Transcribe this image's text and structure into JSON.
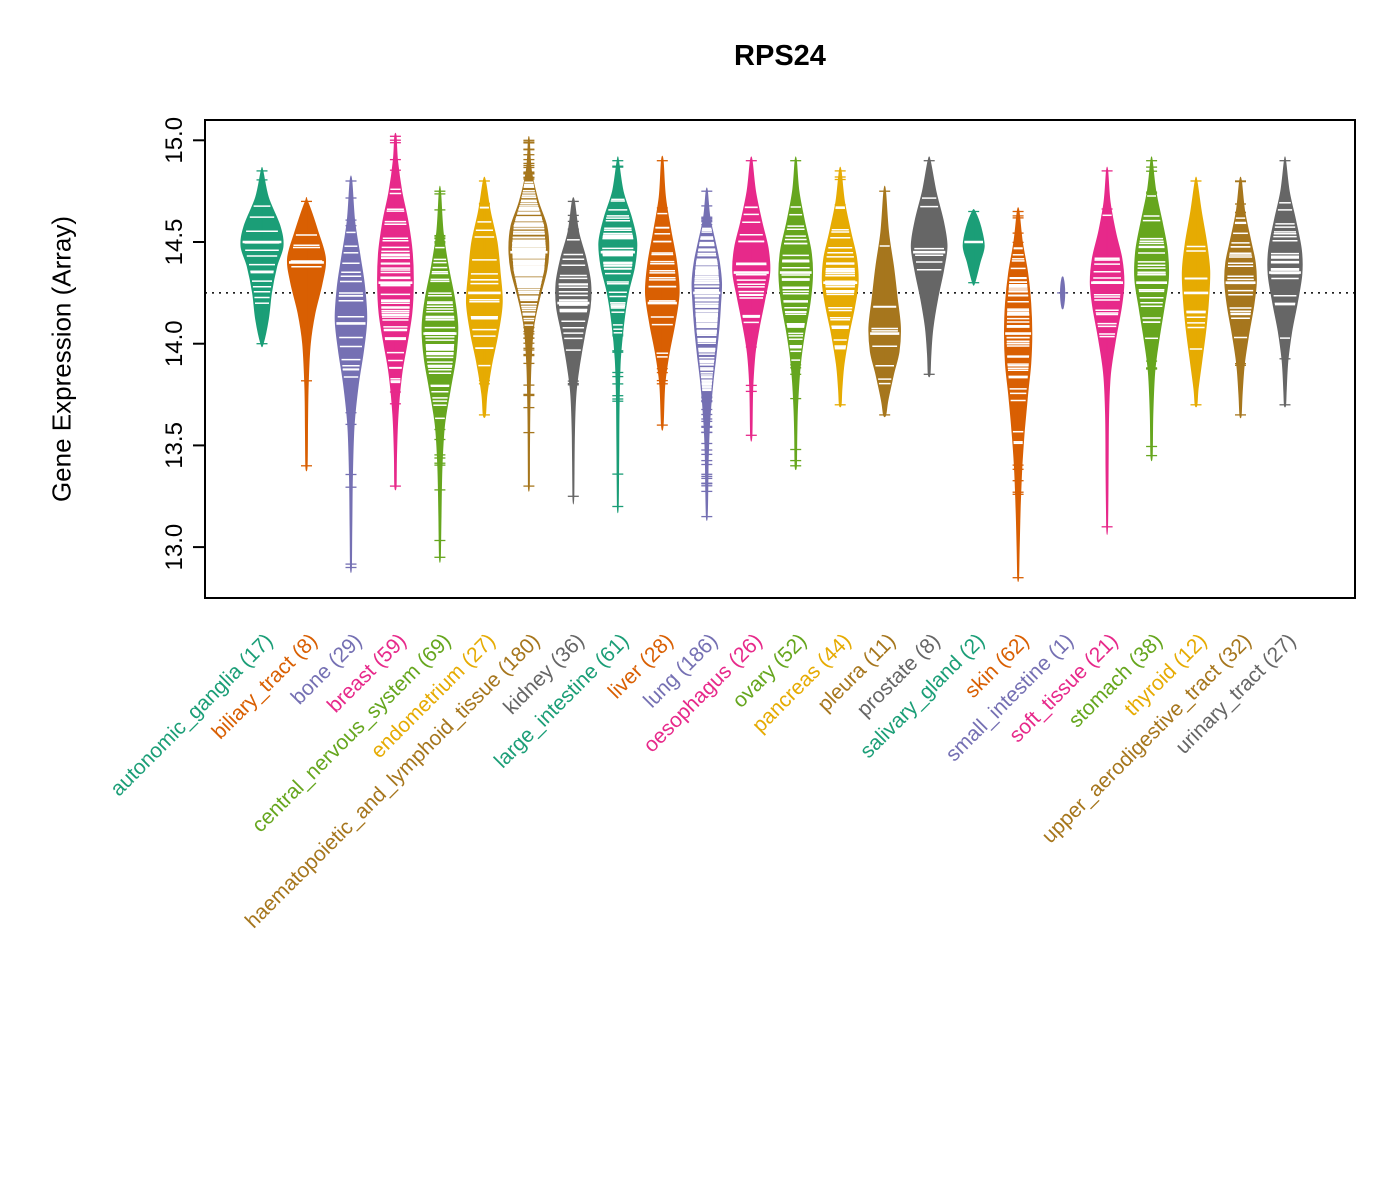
{
  "chart_data": {
    "type": "violin",
    "title": "RPS24",
    "ylabel": "Gene Expression (Array)",
    "xlabel": "",
    "ylim": [
      12.75,
      15.1
    ],
    "yticks": [
      13.0,
      13.5,
      14.0,
      14.5,
      15.0
    ],
    "reference_line": 14.25,
    "grid": false,
    "legend": "none",
    "palette": [
      "#1B9E77",
      "#D95F02",
      "#7570B3",
      "#E7298A",
      "#66A61E",
      "#E6AB02",
      "#A6761D",
      "#666666"
    ],
    "groups": [
      {
        "label": "autonomic_ganglia",
        "n": 17,
        "color": "#1B9E77",
        "median": 14.5,
        "min": 14.0,
        "max": 14.85,
        "profile": [
          [
            14.85,
            0.04
          ],
          [
            14.72,
            0.3
          ],
          [
            14.58,
            0.85
          ],
          [
            14.48,
            1.0
          ],
          [
            14.38,
            0.7
          ],
          [
            14.25,
            0.45
          ],
          [
            14.12,
            0.3
          ],
          [
            14.0,
            0.05
          ]
        ]
      },
      {
        "label": "biliary_tract",
        "n": 8,
        "color": "#D95F02",
        "median": 14.4,
        "min": 13.4,
        "max": 14.7,
        "profile": [
          [
            14.7,
            0.05
          ],
          [
            14.55,
            0.55
          ],
          [
            14.42,
            0.9
          ],
          [
            14.3,
            0.75
          ],
          [
            14.15,
            0.4
          ],
          [
            14.0,
            0.18
          ],
          [
            13.8,
            0.08
          ],
          [
            13.6,
            0.05
          ],
          [
            13.4,
            0.03
          ]
        ]
      },
      {
        "label": "bone",
        "n": 29,
        "color": "#7570B3",
        "median": 14.1,
        "min": 12.9,
        "max": 14.8,
        "profile": [
          [
            14.8,
            0.04
          ],
          [
            14.6,
            0.18
          ],
          [
            14.42,
            0.45
          ],
          [
            14.28,
            0.65
          ],
          [
            14.12,
            0.75
          ],
          [
            13.97,
            0.6
          ],
          [
            13.8,
            0.35
          ],
          [
            13.6,
            0.15
          ],
          [
            13.35,
            0.07
          ],
          [
            13.1,
            0.04
          ],
          [
            12.9,
            0.02
          ]
        ]
      },
      {
        "label": "breast",
        "n": 59,
        "color": "#E7298A",
        "median": 14.3,
        "min": 13.3,
        "max": 15.02,
        "profile": [
          [
            15.02,
            0.03
          ],
          [
            14.9,
            0.1
          ],
          [
            14.75,
            0.3
          ],
          [
            14.6,
            0.6
          ],
          [
            14.45,
            0.8
          ],
          [
            14.3,
            0.85
          ],
          [
            14.15,
            0.78
          ],
          [
            14.0,
            0.55
          ],
          [
            13.85,
            0.3
          ],
          [
            13.65,
            0.12
          ],
          [
            13.45,
            0.05
          ],
          [
            13.3,
            0.03
          ]
        ]
      },
      {
        "label": "central_nervous_system",
        "n": 69,
        "color": "#66A61E",
        "median": 14.05,
        "min": 12.95,
        "max": 14.75,
        "profile": [
          [
            14.75,
            0.03
          ],
          [
            14.55,
            0.15
          ],
          [
            14.38,
            0.4
          ],
          [
            14.22,
            0.7
          ],
          [
            14.08,
            0.85
          ],
          [
            13.93,
            0.75
          ],
          [
            13.78,
            0.5
          ],
          [
            13.6,
            0.22
          ],
          [
            13.4,
            0.1
          ],
          [
            13.15,
            0.05
          ],
          [
            12.95,
            0.02
          ]
        ]
      },
      {
        "label": "endometrium",
        "n": 27,
        "color": "#E6AB02",
        "median": 14.25,
        "min": 13.65,
        "max": 14.8,
        "profile": [
          [
            14.8,
            0.05
          ],
          [
            14.65,
            0.28
          ],
          [
            14.5,
            0.6
          ],
          [
            14.35,
            0.75
          ],
          [
            14.2,
            0.85
          ],
          [
            14.05,
            0.65
          ],
          [
            13.9,
            0.35
          ],
          [
            13.75,
            0.12
          ],
          [
            13.65,
            0.05
          ]
        ]
      },
      {
        "label": "haematopoietic_and_lymphoid_tissue",
        "n": 180,
        "color": "#A6761D",
        "median": 14.45,
        "min": 13.3,
        "max": 15.0,
        "profile": [
          [
            15.0,
            0.02
          ],
          [
            14.85,
            0.12
          ],
          [
            14.7,
            0.45
          ],
          [
            14.58,
            0.85
          ],
          [
            14.47,
            0.95
          ],
          [
            14.36,
            0.85
          ],
          [
            14.22,
            0.5
          ],
          [
            14.08,
            0.22
          ],
          [
            13.9,
            0.1
          ],
          [
            13.7,
            0.05
          ],
          [
            13.5,
            0.03
          ],
          [
            13.3,
            0.02
          ]
        ]
      },
      {
        "label": "kidney",
        "n": 36,
        "color": "#666666",
        "median": 14.2,
        "min": 13.25,
        "max": 14.7,
        "profile": [
          [
            14.7,
            0.05
          ],
          [
            14.55,
            0.25
          ],
          [
            14.42,
            0.6
          ],
          [
            14.3,
            0.82
          ],
          [
            14.18,
            0.8
          ],
          [
            14.05,
            0.55
          ],
          [
            13.9,
            0.3
          ],
          [
            13.75,
            0.12
          ],
          [
            13.55,
            0.05
          ],
          [
            13.25,
            0.02
          ]
        ]
      },
      {
        "label": "large_intestine",
        "n": 61,
        "color": "#1B9E77",
        "median": 14.45,
        "min": 13.2,
        "max": 14.9,
        "profile": [
          [
            14.9,
            0.03
          ],
          [
            14.75,
            0.25
          ],
          [
            14.62,
            0.65
          ],
          [
            14.5,
            0.9
          ],
          [
            14.38,
            0.8
          ],
          [
            14.25,
            0.5
          ],
          [
            14.1,
            0.28
          ],
          [
            13.92,
            0.12
          ],
          [
            13.7,
            0.06
          ],
          [
            13.45,
            0.04
          ],
          [
            13.2,
            0.02
          ]
        ]
      },
      {
        "label": "liver",
        "n": 28,
        "color": "#D95F02",
        "median": 14.2,
        "min": 13.6,
        "max": 14.9,
        "profile": [
          [
            14.9,
            0.04
          ],
          [
            14.72,
            0.15
          ],
          [
            14.55,
            0.42
          ],
          [
            14.4,
            0.68
          ],
          [
            14.25,
            0.8
          ],
          [
            14.1,
            0.6
          ],
          [
            13.95,
            0.32
          ],
          [
            13.8,
            0.12
          ],
          [
            13.6,
            0.04
          ]
        ]
      },
      {
        "label": "lung",
        "n": 186,
        "color": "#7570B3",
        "median": 14.25,
        "min": 13.15,
        "max": 14.75,
        "profile": [
          [
            14.75,
            0.03
          ],
          [
            14.62,
            0.15
          ],
          [
            14.5,
            0.4
          ],
          [
            14.4,
            0.6
          ],
          [
            14.3,
            0.7
          ],
          [
            14.2,
            0.66
          ],
          [
            14.08,
            0.58
          ],
          [
            13.95,
            0.45
          ],
          [
            13.8,
            0.28
          ],
          [
            13.62,
            0.14
          ],
          [
            13.45,
            0.07
          ],
          [
            13.3,
            0.05
          ],
          [
            13.15,
            0.02
          ]
        ]
      },
      {
        "label": "oesophagus",
        "n": 26,
        "color": "#E7298A",
        "median": 14.35,
        "min": 13.55,
        "max": 14.9,
        "profile": [
          [
            14.9,
            0.04
          ],
          [
            14.75,
            0.2
          ],
          [
            14.6,
            0.5
          ],
          [
            14.47,
            0.8
          ],
          [
            14.35,
            0.88
          ],
          [
            14.22,
            0.65
          ],
          [
            14.08,
            0.38
          ],
          [
            13.95,
            0.18
          ],
          [
            13.78,
            0.07
          ],
          [
            13.55,
            0.03
          ]
        ]
      },
      {
        "label": "ovary",
        "n": 52,
        "color": "#66A61E",
        "median": 14.35,
        "min": 13.4,
        "max": 14.9,
        "profile": [
          [
            14.9,
            0.03
          ],
          [
            14.75,
            0.15
          ],
          [
            14.6,
            0.42
          ],
          [
            14.46,
            0.72
          ],
          [
            14.34,
            0.8
          ],
          [
            14.2,
            0.68
          ],
          [
            14.05,
            0.42
          ],
          [
            13.9,
            0.22
          ],
          [
            13.7,
            0.09
          ],
          [
            13.55,
            0.05
          ],
          [
            13.4,
            0.03
          ]
        ]
      },
      {
        "label": "pancreas",
        "n": 44,
        "color": "#E6AB02",
        "median": 14.3,
        "min": 13.7,
        "max": 14.85,
        "profile": [
          [
            14.85,
            0.04
          ],
          [
            14.7,
            0.2
          ],
          [
            14.55,
            0.5
          ],
          [
            14.42,
            0.78
          ],
          [
            14.3,
            0.85
          ],
          [
            14.18,
            0.68
          ],
          [
            14.05,
            0.42
          ],
          [
            13.9,
            0.18
          ],
          [
            13.78,
            0.08
          ],
          [
            13.7,
            0.04
          ]
        ]
      },
      {
        "label": "pleura",
        "n": 11,
        "color": "#A6761D",
        "median": 14.05,
        "min": 13.65,
        "max": 14.75,
        "profile": [
          [
            14.75,
            0.04
          ],
          [
            14.55,
            0.18
          ],
          [
            14.38,
            0.42
          ],
          [
            14.22,
            0.6
          ],
          [
            14.08,
            0.75
          ],
          [
            13.96,
            0.68
          ],
          [
            13.85,
            0.42
          ],
          [
            13.72,
            0.15
          ],
          [
            13.65,
            0.05
          ]
        ]
      },
      {
        "label": "prostate",
        "n": 8,
        "color": "#666666",
        "median": 14.45,
        "min": 13.85,
        "max": 14.9,
        "profile": [
          [
            14.9,
            0.05
          ],
          [
            14.75,
            0.32
          ],
          [
            14.6,
            0.68
          ],
          [
            14.48,
            0.85
          ],
          [
            14.36,
            0.68
          ],
          [
            14.22,
            0.4
          ],
          [
            14.08,
            0.18
          ],
          [
            13.95,
            0.08
          ],
          [
            13.85,
            0.04
          ]
        ]
      },
      {
        "label": "salivary_gland",
        "n": 2,
        "color": "#1B9E77",
        "median": 14.5,
        "min": 14.3,
        "max": 14.65,
        "profile": [
          [
            14.65,
            0.06
          ],
          [
            14.57,
            0.35
          ],
          [
            14.48,
            0.5
          ],
          [
            14.4,
            0.3
          ],
          [
            14.3,
            0.05
          ]
        ]
      },
      {
        "label": "skin",
        "n": 62,
        "color": "#D95F02",
        "median": 14.05,
        "min": 12.85,
        "max": 14.65,
        "profile": [
          [
            14.65,
            0.04
          ],
          [
            14.5,
            0.2
          ],
          [
            14.35,
            0.45
          ],
          [
            14.2,
            0.6
          ],
          [
            14.05,
            0.65
          ],
          [
            13.9,
            0.6
          ],
          [
            13.75,
            0.45
          ],
          [
            13.58,
            0.3
          ],
          [
            13.4,
            0.18
          ],
          [
            13.2,
            0.1
          ],
          [
            13.0,
            0.05
          ],
          [
            12.85,
            0.02
          ]
        ]
      },
      {
        "label": "small_intestine",
        "n": 1,
        "color": "#7570B3",
        "median": 14.25,
        "min": 14.18,
        "max": 14.32,
        "profile": [
          [
            14.32,
            0.04
          ],
          [
            14.25,
            0.1
          ],
          [
            14.18,
            0.04
          ]
        ]
      },
      {
        "label": "soft_tissue",
        "n": 21,
        "color": "#E7298A",
        "median": 14.3,
        "min": 13.1,
        "max": 14.85,
        "profile": [
          [
            14.85,
            0.03
          ],
          [
            14.7,
            0.14
          ],
          [
            14.55,
            0.4
          ],
          [
            14.42,
            0.7
          ],
          [
            14.3,
            0.8
          ],
          [
            14.18,
            0.68
          ],
          [
            14.02,
            0.4
          ],
          [
            13.85,
            0.16
          ],
          [
            13.65,
            0.07
          ],
          [
            13.4,
            0.05
          ],
          [
            13.1,
            0.02
          ]
        ]
      },
      {
        "label": "stomach",
        "n": 38,
        "color": "#66A61E",
        "median": 14.3,
        "min": 13.45,
        "max": 14.9,
        "profile": [
          [
            14.9,
            0.03
          ],
          [
            14.75,
            0.2
          ],
          [
            14.6,
            0.5
          ],
          [
            14.46,
            0.75
          ],
          [
            14.32,
            0.8
          ],
          [
            14.18,
            0.6
          ],
          [
            14.02,
            0.35
          ],
          [
            13.86,
            0.15
          ],
          [
            13.65,
            0.06
          ],
          [
            13.45,
            0.03
          ]
        ]
      },
      {
        "label": "thyroid",
        "n": 12,
        "color": "#E6AB02",
        "median": 14.25,
        "min": 13.7,
        "max": 14.8,
        "profile": [
          [
            14.8,
            0.04
          ],
          [
            14.65,
            0.25
          ],
          [
            14.5,
            0.5
          ],
          [
            14.36,
            0.65
          ],
          [
            14.22,
            0.6
          ],
          [
            14.08,
            0.48
          ],
          [
            13.92,
            0.28
          ],
          [
            13.78,
            0.1
          ],
          [
            13.7,
            0.04
          ]
        ]
      },
      {
        "label": "upper_aerodigestive_tract",
        "n": 32,
        "color": "#A6761D",
        "median": 14.3,
        "min": 13.65,
        "max": 14.8,
        "profile": [
          [
            14.8,
            0.04
          ],
          [
            14.65,
            0.2
          ],
          [
            14.5,
            0.5
          ],
          [
            14.4,
            0.7
          ],
          [
            14.3,
            0.75
          ],
          [
            14.18,
            0.62
          ],
          [
            14.04,
            0.38
          ],
          [
            13.9,
            0.18
          ],
          [
            13.76,
            0.08
          ],
          [
            13.65,
            0.03
          ]
        ]
      },
      {
        "label": "urinary_tract",
        "n": 27,
        "color": "#666666",
        "median": 14.35,
        "min": 13.7,
        "max": 14.9,
        "profile": [
          [
            14.9,
            0.03
          ],
          [
            14.75,
            0.2
          ],
          [
            14.6,
            0.52
          ],
          [
            14.46,
            0.78
          ],
          [
            14.34,
            0.8
          ],
          [
            14.2,
            0.58
          ],
          [
            14.06,
            0.32
          ],
          [
            13.92,
            0.14
          ],
          [
            13.78,
            0.06
          ],
          [
            13.7,
            0.03
          ]
        ]
      }
    ]
  }
}
